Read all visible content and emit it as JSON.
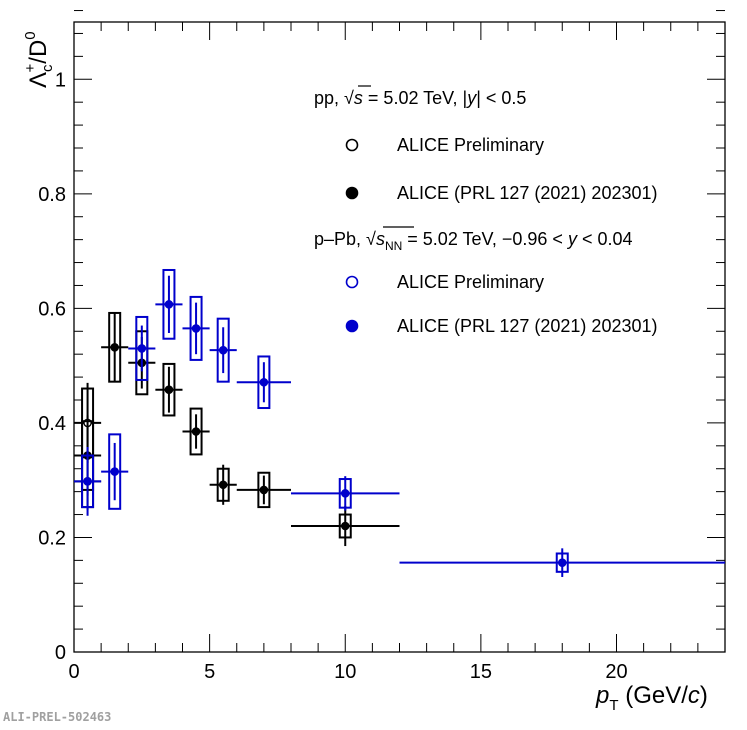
{
  "chart_data": {
    "type": "scatter",
    "ylabel": {
      "main": "Λ",
      "sub": "c",
      "sup": "+",
      "rest": "/D",
      "sup2": "0"
    },
    "xlabel": {
      "italic": "p",
      "sub": "T",
      "unit_pre": " (GeV/",
      "unit_italic": "c",
      "unit_post": ")"
    },
    "xlim": [
      0,
      24
    ],
    "ylim": [
      0,
      1.1
    ],
    "xticks": [
      0,
      5,
      10,
      15,
      20
    ],
    "yticks": [
      0,
      0.2,
      0.4,
      0.6,
      0.8,
      1
    ],
    "ytick_labels": [
      "0",
      "0.2",
      "0.4",
      "0.6",
      "0.8",
      "1"
    ],
    "watermark": "ALI-PREL-502463",
    "legend": {
      "pp_header": {
        "pre": "pp, ",
        "root": "s",
        "mid": " = 5.02 TeV, |",
        "italic": "y",
        "post": "| < 0.5"
      },
      "ppb_header": {
        "pre": "p–Pb, ",
        "root": "s",
        "root_sub": "NN",
        "mid": " = 5.02 TeV, −0.96 < ",
        "italic": "y",
        "post": " < 0.04"
      },
      "entries": [
        {
          "label": "ALICE Preliminary",
          "color": "#000000",
          "filled": false
        },
        {
          "label": "ALICE (PRL 127 (2021) 202301)",
          "color": "#000000",
          "filled": true
        },
        {
          "label": "ALICE Preliminary",
          "color": "#0000cc",
          "filled": false
        },
        {
          "label": "ALICE (PRL 127 (2021) 202301)",
          "color": "#0000cc",
          "filled": true
        }
      ]
    },
    "series": [
      {
        "name": "pp ALICE Preliminary",
        "color": "#000000",
        "filled": false,
        "points": [
          {
            "x": 0.5,
            "xerr": 0.5,
            "y": 0.4,
            "stat": 0.07,
            "sys": 0.06
          },
          {
            "x": 0.5,
            "xerr": 0.5,
            "y": 0.298,
            "stat": 0.05,
            "sys": 0.045
          }
        ]
      },
      {
        "name": "pp ALICE (PRL 127 (2021) 202301)",
        "color": "#000000",
        "filled": true,
        "points": [
          {
            "x": 0.5,
            "xerr": 0.5,
            "y": 0.343,
            "stat": 0.07,
            "sys": 0.06
          },
          {
            "x": 1.5,
            "xerr": 0.5,
            "y": 0.532,
            "stat": 0.06,
            "sys": 0.06
          },
          {
            "x": 2.5,
            "xerr": 0.5,
            "y": 0.505,
            "stat": 0.045,
            "sys": 0.055
          },
          {
            "x": 3.5,
            "xerr": 0.5,
            "y": 0.458,
            "stat": 0.04,
            "sys": 0.045
          },
          {
            "x": 4.5,
            "xerr": 0.5,
            "y": 0.385,
            "stat": 0.03,
            "sys": 0.04
          },
          {
            "x": 5.5,
            "xerr": 0.5,
            "y": 0.292,
            "stat": 0.035,
            "sys": 0.028
          },
          {
            "x": 7.0,
            "xerr": 1.0,
            "y": 0.283,
            "stat": 0.025,
            "sys": 0.03
          },
          {
            "x": 10.0,
            "xerr": 2.0,
            "y": 0.22,
            "stat": 0.035,
            "sys": 0.02
          }
        ]
      },
      {
        "name": "p-Pb ALICE Preliminary",
        "color": "#0000cc",
        "filled": false,
        "points": []
      },
      {
        "name": "p-Pb ALICE (PRL 127 (2021) 202301)",
        "color": "#0000cc",
        "filled": true,
        "points": [
          {
            "x": 0.5,
            "xerr": 0.5,
            "y": 0.298,
            "stat": 0.06,
            "sys": 0.045
          },
          {
            "x": 1.5,
            "xerr": 0.5,
            "y": 0.315,
            "stat": 0.05,
            "sys": 0.065
          },
          {
            "x": 2.5,
            "xerr": 0.5,
            "y": 0.53,
            "stat": 0.04,
            "sys": 0.055
          },
          {
            "x": 3.5,
            "xerr": 0.5,
            "y": 0.607,
            "stat": 0.05,
            "sys": 0.06
          },
          {
            "x": 4.5,
            "xerr": 0.5,
            "y": 0.565,
            "stat": 0.045,
            "sys": 0.055
          },
          {
            "x": 5.5,
            "xerr": 0.5,
            "y": 0.527,
            "stat": 0.04,
            "sys": 0.055
          },
          {
            "x": 7.0,
            "xerr": 1.0,
            "y": 0.471,
            "stat": 0.035,
            "sys": 0.045
          },
          {
            "x": 10.0,
            "xerr": 2.0,
            "y": 0.277,
            "stat": 0.03,
            "sys": 0.025
          },
          {
            "x": 18.0,
            "xerr": 6.0,
            "y": 0.156,
            "stat": 0.025,
            "sys": 0.016
          }
        ]
      }
    ]
  }
}
